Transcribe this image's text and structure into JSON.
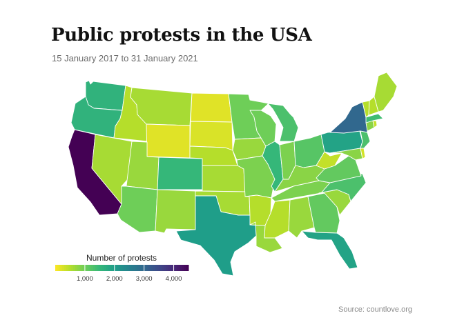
{
  "title": "Public protests in the USA",
  "subtitle": "15 January 2017 to 31 January 2021",
  "source": "Source: countlove.org",
  "legend": {
    "title": "Number of protests",
    "ticks": [
      {
        "value": 1000,
        "label": "1,000"
      },
      {
        "value": 2000,
        "label": "2,000"
      },
      {
        "value": 3000,
        "label": "3,000"
      },
      {
        "value": 4000,
        "label": "4,000"
      }
    ],
    "range": [
      0,
      4500
    ],
    "color_scale": "viridis (reversed)",
    "colors": [
      "#fde725",
      "#b5de2b",
      "#6ece58",
      "#35b779",
      "#1f9e89",
      "#26828e",
      "#31688e",
      "#3e4989",
      "#482878",
      "#440154"
    ]
  },
  "chart_data": {
    "type": "choropleth",
    "note_region": "USA (lower 48)",
    "values": {
      "CA": 4500,
      "NY": 3000,
      "TX": 2000,
      "FL": 1900,
      "PA": 1900,
      "WA": 1600,
      "OR": 1600,
      "CO": 1500,
      "IL": 1500,
      "MA": 1400,
      "MI": 1300,
      "NC": 1300,
      "NJ": 1300,
      "OH": 1200,
      "VA": 1100,
      "GA": 1100,
      "AZ": 1000,
      "WI": 1000,
      "MN": 1000,
      "IN": 900,
      "MO": 900,
      "TN": 900,
      "MD": 800,
      "CT": 800,
      "SC": 700,
      "KY": 800,
      "LA": 700,
      "AL": 700,
      "NM": 700,
      "UT": 700,
      "IA": 700,
      "OK": 600,
      "NV": 600,
      "KS": 600,
      "ME": 600,
      "AR": 500,
      "NE": 500,
      "MS": 500,
      "ID": 500,
      "MT": 600,
      "NH": 500,
      "VT": 500,
      "WV": 400,
      "RI": 400,
      "DE": 300,
      "WY": 200,
      "SD": 250,
      "ND": 200
    }
  }
}
